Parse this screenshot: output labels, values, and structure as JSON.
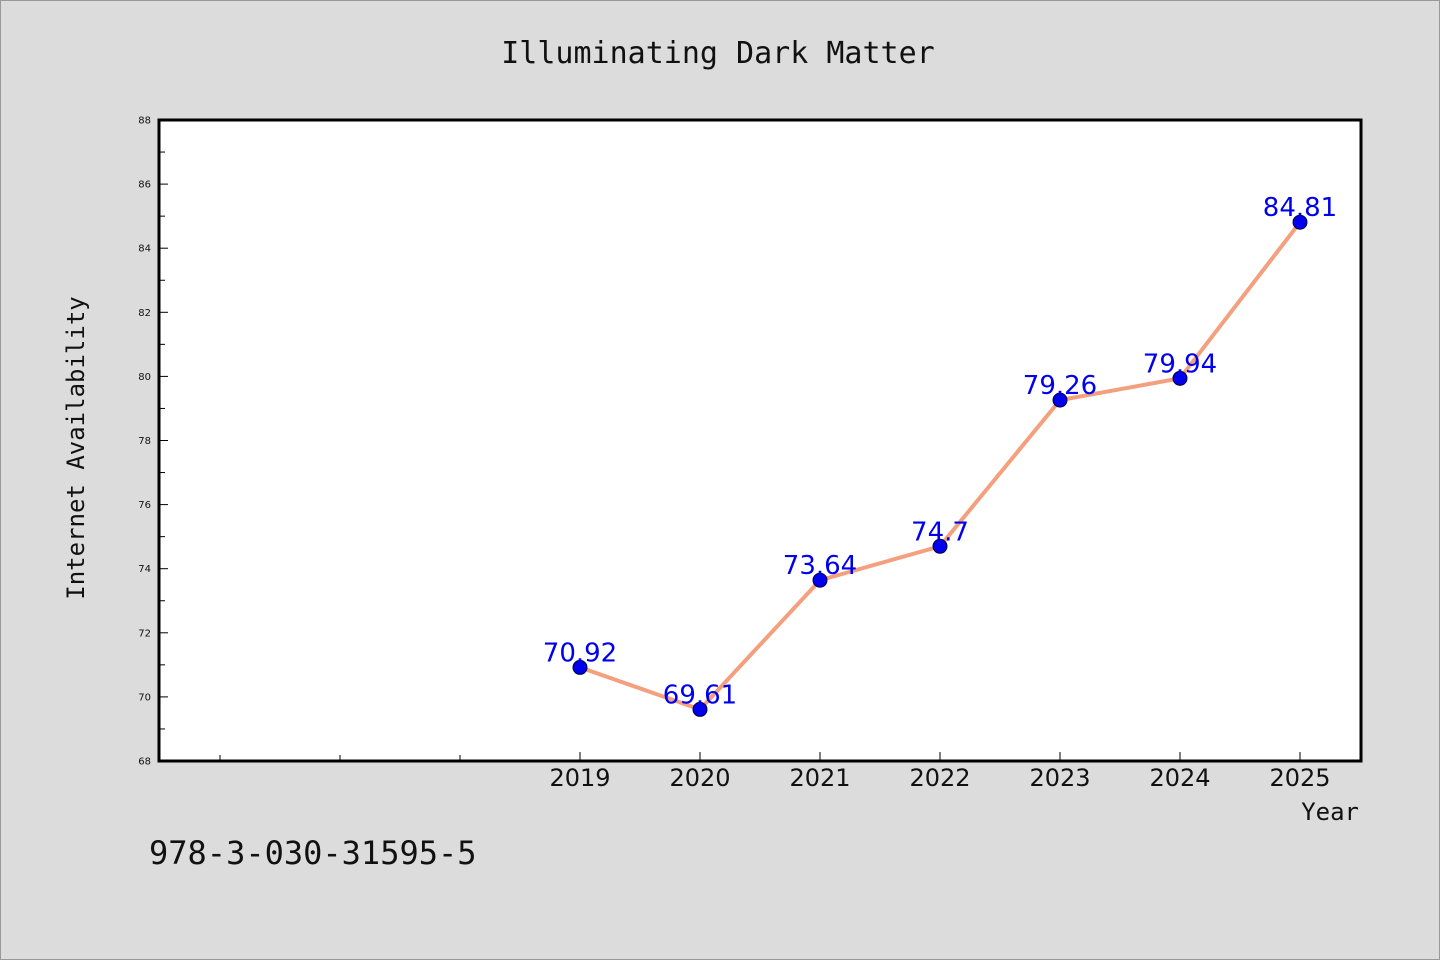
{
  "chart_data": {
    "type": "line",
    "title": "Illuminating Dark Matter",
    "xlabel": "Year",
    "ylabel": "Internet Availability",
    "categories": [
      "2019",
      "2020",
      "2021",
      "2022",
      "2023",
      "2024",
      "2025"
    ],
    "series": [
      {
        "values": [
          70.92,
          69.61,
          73.64,
          74.7,
          79.26,
          79.94,
          84.81
        ],
        "labels": [
          "70.92",
          "69.61",
          "73.64",
          "74.7",
          "79.26",
          "79.94",
          "84.81"
        ]
      }
    ],
    "ylim": [
      68,
      88
    ],
    "yticks": [
      "68",
      "70",
      "72",
      "74",
      "76",
      "78",
      "80",
      "82",
      "84",
      "86",
      "88"
    ],
    "grid": false,
    "line_color": "#f4a07e",
    "marker_color": "#0000ee",
    "label_color": "#0000ee"
  },
  "footer": {
    "isbn": "978-3-030-31595-5"
  }
}
